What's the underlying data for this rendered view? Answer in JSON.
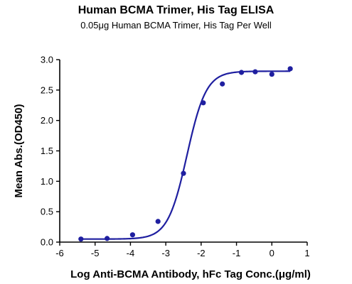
{
  "chart_data": {
    "type": "scatter",
    "title": "Human BCMA Trimer, His Tag ELISA",
    "subtitle": "0.05μg Human BCMA Trimer, His Tag Per Well",
    "xlabel": "Log Anti-BCMA Antibody, hFc Tag Conc.(μg/ml)",
    "ylabel": "Mean Abs.(OD450)",
    "xlim": [
      -6,
      1
    ],
    "ylim": [
      0,
      3.0
    ],
    "x_ticks": [
      "-6",
      "-5",
      "-4",
      "-3",
      "-2",
      "-1",
      "0",
      "1"
    ],
    "y_ticks": [
      "0.0",
      "0.5",
      "1.0",
      "1.5",
      "2.0",
      "2.5",
      "3.0"
    ],
    "grid": false,
    "color": "#1f1fa0",
    "series": [
      {
        "points": [
          {
            "x": -5.4,
            "y": 0.05
          },
          {
            "x": -4.66,
            "y": 0.06
          },
          {
            "x": -3.94,
            "y": 0.12
          },
          {
            "x": -3.22,
            "y": 0.34
          },
          {
            "x": -2.5,
            "y": 1.13
          },
          {
            "x": -1.94,
            "y": 2.29
          },
          {
            "x": -1.4,
            "y": 2.6
          },
          {
            "x": -0.86,
            "y": 2.79
          },
          {
            "x": -0.47,
            "y": 2.8
          },
          {
            "x": 0.0,
            "y": 2.76
          },
          {
            "x": 0.52,
            "y": 2.85
          }
        ],
        "fit": {
          "model": "4PL",
          "bottom": 0.05,
          "top": 2.81,
          "logEC50": -2.4,
          "hill": 1.6
        }
      }
    ]
  }
}
